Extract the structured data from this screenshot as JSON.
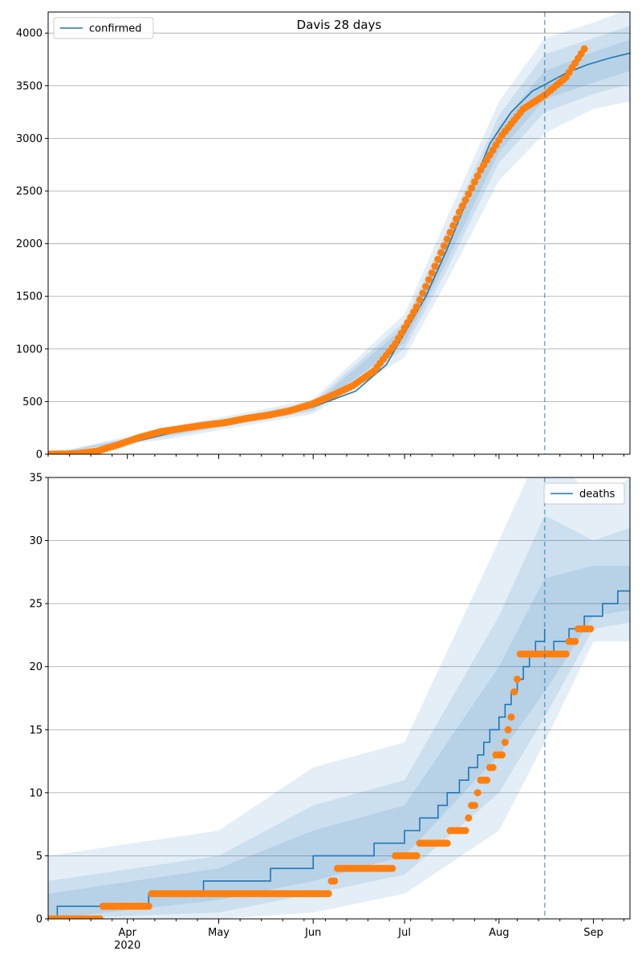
{
  "colors": {
    "model": "#1f77b4",
    "observed": "#ff7f0e",
    "grid": "#b0b0b0",
    "band": "#1f77b4"
  },
  "chart_data": [
    {
      "type": "line",
      "title": "Davis 28 days",
      "legend": {
        "entries": [
          "confirmed"
        ],
        "placement": "top-left"
      },
      "grid": "horizontal",
      "xlim": [
        "2020-03-06",
        "2020-09-13"
      ],
      "ylim": [
        0,
        4200
      ],
      "yticks": [
        0,
        500,
        1000,
        1500,
        2000,
        2500,
        3000,
        3500,
        4000
      ],
      "xtick_labels": [],
      "forecast_start": "2020-08-16",
      "series": [
        {
          "name": "confirmed",
          "x": [
            "2020-03-06",
            "2020-03-21",
            "2020-04-01",
            "2020-04-15",
            "2020-05-01",
            "2020-05-15",
            "2020-06-01",
            "2020-06-15",
            "2020-06-25",
            "2020-07-01",
            "2020-07-08",
            "2020-07-15",
            "2020-07-22",
            "2020-07-29",
            "2020-08-05",
            "2020-08-12",
            "2020-08-16"
          ],
          "y": [
            0,
            10,
            100,
            200,
            290,
            350,
            450,
            600,
            850,
            1150,
            1500,
            1950,
            2450,
            2950,
            3250,
            3450,
            3510
          ]
        },
        {
          "name": "forecast",
          "x": [
            "2020-08-16",
            "2020-08-23",
            "2020-08-30",
            "2020-09-06",
            "2020-09-13"
          ],
          "y": [
            3510,
            3620,
            3700,
            3760,
            3810
          ]
        },
        {
          "name": "observed",
          "x": [
            "2020-03-06",
            "2020-03-15",
            "2020-03-22",
            "2020-03-29",
            "2020-04-05",
            "2020-04-12",
            "2020-04-19",
            "2020-04-26",
            "2020-05-03",
            "2020-05-10",
            "2020-05-17",
            "2020-05-24",
            "2020-05-31",
            "2020-06-07",
            "2020-06-14",
            "2020-06-21",
            "2020-06-28",
            "2020-07-05",
            "2020-07-12",
            "2020-07-19",
            "2020-07-26",
            "2020-08-02",
            "2020-08-09",
            "2020-08-16",
            "2020-08-23",
            "2020-08-29"
          ],
          "y": [
            0,
            5,
            30,
            90,
            160,
            215,
            245,
            275,
            300,
            340,
            370,
            410,
            470,
            555,
            650,
            790,
            1050,
            1400,
            1850,
            2300,
            2700,
            3030,
            3280,
            3410,
            3580,
            3850
          ]
        }
      ],
      "bands": [
        {
          "x": [
            "2020-03-06",
            "2020-04-15",
            "2020-06-01",
            "2020-07-01",
            "2020-07-15",
            "2020-08-01",
            "2020-08-16",
            "2020-09-01",
            "2020-09-13"
          ],
          "lower": [
            0,
            145,
            385,
            920,
            1650,
            2600,
            3050,
            3280,
            3350
          ],
          "upper": [
            0,
            260,
            520,
            1330,
            2250,
            3350,
            3950,
            4100,
            4230
          ]
        },
        {
          "x": [
            "2020-03-06",
            "2020-04-15",
            "2020-06-01",
            "2020-07-01",
            "2020-07-15",
            "2020-08-01",
            "2020-08-16",
            "2020-09-01",
            "2020-09-13"
          ],
          "lower": [
            0,
            170,
            410,
            1000,
            1760,
            2770,
            3250,
            3420,
            3520
          ],
          "upper": [
            0,
            235,
            495,
            1260,
            2130,
            3220,
            3800,
            3950,
            4070
          ]
        },
        {
          "x": [
            "2020-03-06",
            "2020-04-15",
            "2020-06-01",
            "2020-07-01",
            "2020-07-15",
            "2020-08-01",
            "2020-08-16",
            "2020-09-01",
            "2020-09-13"
          ],
          "lower": [
            0,
            185,
            430,
            1060,
            1840,
            2870,
            3370,
            3530,
            3640
          ],
          "upper": [
            0,
            215,
            470,
            1210,
            2050,
            3120,
            3640,
            3820,
            3940
          ]
        }
      ]
    },
    {
      "type": "line",
      "title": "",
      "legend": {
        "entries": [
          "deaths"
        ],
        "placement": "top-right"
      },
      "grid": "horizontal",
      "xlim": [
        "2020-03-06",
        "2020-09-13"
      ],
      "ylim": [
        0,
        35
      ],
      "yticks": [
        0,
        5,
        10,
        15,
        20,
        25,
        30,
        35
      ],
      "xtick_labels": [
        {
          "date": "2020-04-01",
          "label": "Apr"
        },
        {
          "date": "2020-05-01",
          "label": "May"
        },
        {
          "date": "2020-06-01",
          "label": "Jun"
        },
        {
          "date": "2020-07-01",
          "label": "Jul"
        },
        {
          "date": "2020-08-01",
          "label": "Aug"
        },
        {
          "date": "2020-09-01",
          "label": "Sep"
        }
      ],
      "xtick_year": {
        "date": "2020-04-01",
        "label": "2020"
      },
      "forecast_start": "2020-08-16",
      "series": [
        {
          "name": "deaths",
          "steps": [
            [
              "2020-03-06",
              0
            ],
            [
              "2020-03-09",
              1
            ],
            [
              "2020-03-28",
              1
            ],
            [
              "2020-04-08",
              2
            ],
            [
              "2020-04-26",
              3
            ],
            [
              "2020-05-18",
              4
            ],
            [
              "2020-06-01",
              5
            ],
            [
              "2020-06-21",
              6
            ],
            [
              "2020-07-01",
              7
            ],
            [
              "2020-07-06",
              8
            ],
            [
              "2020-07-12",
              9
            ],
            [
              "2020-07-15",
              10
            ],
            [
              "2020-07-19",
              11
            ],
            [
              "2020-07-22",
              12
            ],
            [
              "2020-07-25",
              13
            ],
            [
              "2020-07-27",
              14
            ],
            [
              "2020-07-29",
              15
            ],
            [
              "2020-08-01",
              16
            ],
            [
              "2020-08-03",
              17
            ],
            [
              "2020-08-05",
              18
            ],
            [
              "2020-08-07",
              19
            ],
            [
              "2020-08-09",
              20
            ],
            [
              "2020-08-11",
              21
            ],
            [
              "2020-08-13",
              22
            ],
            [
              "2020-08-16",
              23
            ]
          ]
        },
        {
          "name": "forecast",
          "steps": [
            [
              "2020-08-16",
              21
            ],
            [
              "2020-08-19",
              22
            ],
            [
              "2020-08-24",
              23
            ],
            [
              "2020-08-29",
              24
            ],
            [
              "2020-09-04",
              25
            ],
            [
              "2020-09-09",
              26
            ],
            [
              "2020-09-13",
              26
            ]
          ]
        },
        {
          "name": "observed",
          "runs": [
            [
              "2020-03-06",
              "2020-03-23",
              0
            ],
            [
              "2020-03-24",
              "2020-04-08",
              1
            ],
            [
              "2020-04-09",
              "2020-06-06",
              2
            ],
            [
              "2020-06-07",
              "2020-06-08",
              3
            ],
            [
              "2020-06-09",
              "2020-06-27",
              4
            ],
            [
              "2020-06-28",
              "2020-07-05",
              5
            ],
            [
              "2020-07-06",
              "2020-07-15",
              6
            ],
            [
              "2020-07-16",
              "2020-07-21",
              7
            ],
            [
              "2020-07-22",
              "2020-07-22",
              8
            ],
            [
              "2020-07-23",
              "2020-07-24",
              9
            ],
            [
              "2020-07-25",
              "2020-07-25",
              10
            ],
            [
              "2020-07-26",
              "2020-07-28",
              11
            ],
            [
              "2020-07-29",
              "2020-07-30",
              12
            ],
            [
              "2020-07-31",
              "2020-08-02",
              13
            ],
            [
              "2020-08-03",
              "2020-08-03",
              14
            ],
            [
              "2020-08-04",
              "2020-08-04",
              15
            ],
            [
              "2020-08-05",
              "2020-08-05",
              16
            ],
            [
              "2020-08-06",
              "2020-08-06",
              18
            ],
            [
              "2020-08-07",
              "2020-08-07",
              19
            ],
            [
              "2020-08-08",
              "2020-08-23",
              21
            ],
            [
              "2020-08-24",
              "2020-08-26",
              22
            ],
            [
              "2020-08-27",
              "2020-08-31",
              23
            ]
          ]
        }
      ],
      "bands": [
        {
          "x": [
            "2020-03-06",
            "2020-05-01",
            "2020-06-01",
            "2020-07-01",
            "2020-08-01",
            "2020-08-16",
            "2020-09-01",
            "2020-09-13"
          ],
          "lower": [
            0,
            0,
            0.5,
            2,
            7,
            14,
            22,
            22
          ],
          "upper": [
            5,
            7,
            12,
            14,
            30,
            38,
            33,
            35
          ]
        },
        {
          "x": [
            "2020-03-06",
            "2020-05-01",
            "2020-06-01",
            "2020-07-01",
            "2020-08-01",
            "2020-08-16",
            "2020-09-01",
            "2020-09-13"
          ],
          "lower": [
            0,
            0.5,
            2,
            3.5,
            10,
            16,
            23,
            23.5
          ],
          "upper": [
            3,
            5,
            9,
            11,
            24,
            32,
            30,
            31
          ]
        },
        {
          "x": [
            "2020-03-06",
            "2020-05-01",
            "2020-06-01",
            "2020-07-01",
            "2020-08-01",
            "2020-08-16",
            "2020-09-01",
            "2020-09-13"
          ],
          "lower": [
            0,
            1.5,
            3,
            5,
            13,
            18,
            24,
            24.5
          ],
          "upper": [
            2,
            4,
            7,
            9,
            20,
            27,
            28,
            28
          ]
        }
      ]
    }
  ]
}
